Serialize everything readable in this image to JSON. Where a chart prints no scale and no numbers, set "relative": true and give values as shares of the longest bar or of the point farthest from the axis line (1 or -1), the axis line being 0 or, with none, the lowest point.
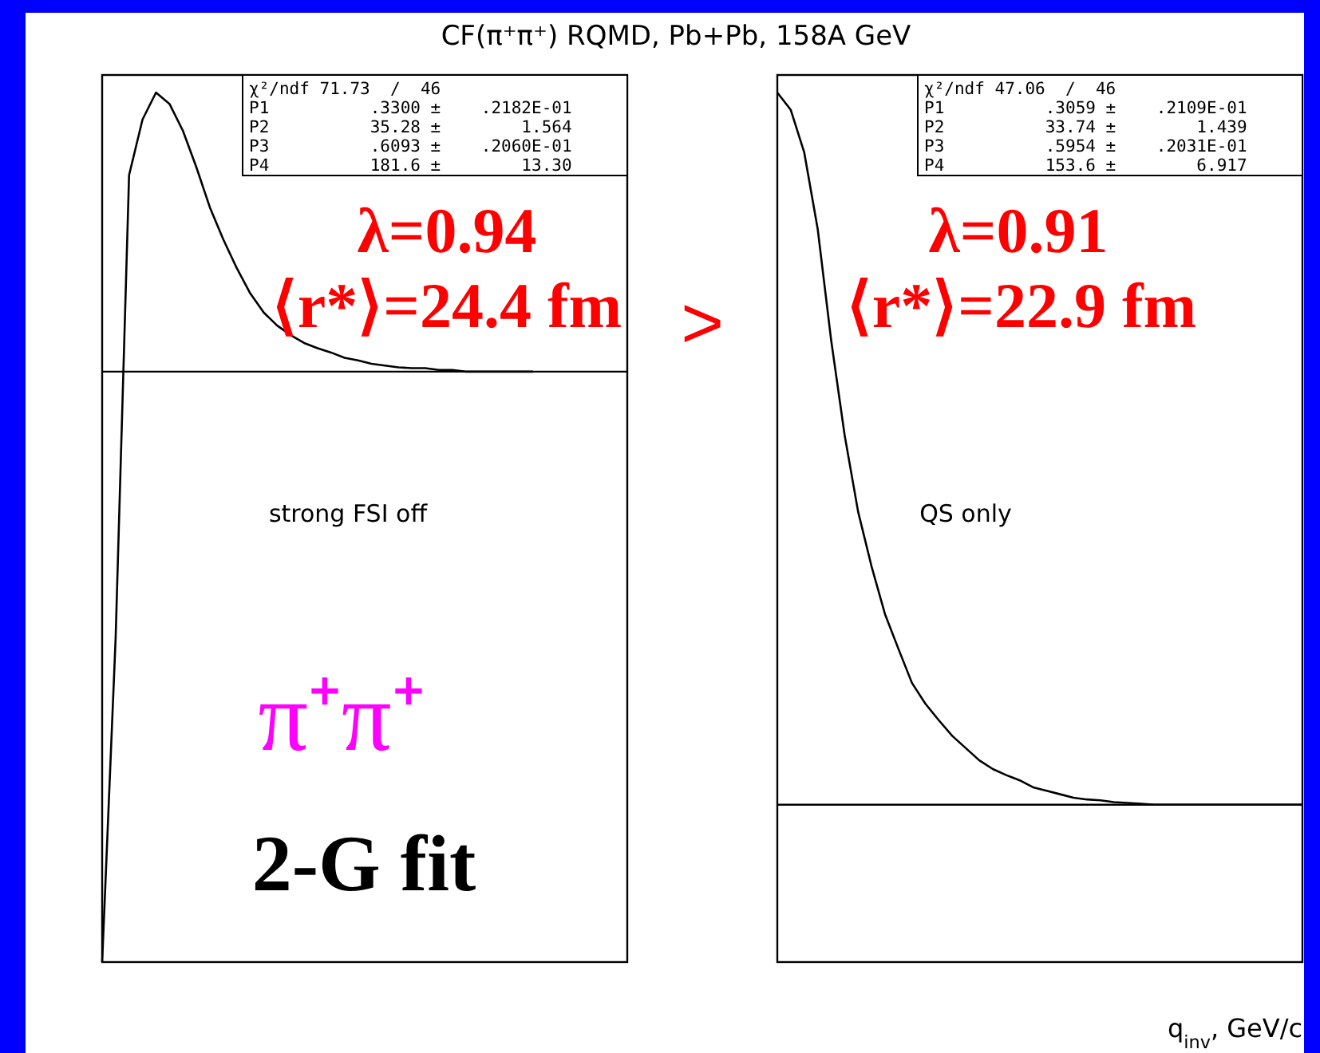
{
  "chart_data": [
    {
      "type": "line",
      "relative": true,
      "title": "CF(π⁺π⁺) RQMD, Pb+Pb, 158A GeV",
      "categories": [
        null,
        null,
        null,
        null,
        null,
        null,
        null,
        null,
        null,
        null,
        null,
        null,
        null,
        null,
        null,
        null,
        null,
        null,
        null,
        null,
        null,
        null,
        null,
        null,
        null,
        null,
        null,
        null,
        null,
        null,
        null,
        null,
        null,
        null,
        null,
        null,
        null,
        null,
        null,
        null
      ],
      "series": [
        {
          "color": "#000000",
          "values": [
            0,
            0.372,
            0.905,
            0.969,
            1,
            0.987,
            0.956,
            0.914,
            0.868,
            0.831,
            0.798,
            0.769,
            0.747,
            0.732,
            0.721,
            0.712,
            0.706,
            0.701,
            0.695,
            0.692,
            0.688,
            0.686,
            0.684,
            0.683,
            0.683,
            0.681,
            0.681,
            0.679,
            0.679,
            0.679,
            0.679,
            0.679,
            0.679,
            null,
            null,
            null,
            null,
            null,
            null,
            null
          ]
        }
      ],
      "ref_lines": [
        {
          "axis": "y",
          "value": 0.679,
          "color": "#000000"
        }
      ],
      "annotations": [
        "χ²/ndf 71.73  /  46",
        "P1          .3300 ±    .2182E-01",
        "P2          35.28 ±        1.564",
        "P3          .6093 ±    .2060E-01",
        "P4          181.6 ±        13.30",
        "λ=0.94",
        "⟨r*⟩=24.4 fm",
        "strong FSI off",
        "π⁺π⁺",
        "2-G fit",
        ">"
      ]
    },
    {
      "type": "line",
      "relative": true,
      "xlabel": "q$_{inv}$, GeV/c",
      "categories": [
        null,
        null,
        null,
        null,
        null,
        null,
        null,
        null,
        null,
        null,
        null,
        null,
        null,
        null,
        null,
        null,
        null,
        null,
        null,
        null,
        null,
        null,
        null,
        null,
        null,
        null,
        null,
        null,
        null,
        null,
        null,
        null,
        null,
        null,
        null,
        null,
        null,
        null,
        null,
        null
      ],
      "series": [
        {
          "color": "#000000",
          "values": [
            1,
            0.98,
            0.931,
            0.843,
            0.715,
            0.606,
            0.518,
            0.455,
            0.4,
            0.36,
            0.321,
            0.297,
            0.278,
            0.26,
            0.246,
            0.232,
            0.222,
            0.215,
            0.209,
            0.201,
            0.197,
            0.193,
            0.189,
            0.187,
            0.186,
            0.184,
            0.183,
            0.182,
            0.181,
            0.181,
            0.181,
            0.181,
            0.181,
            0.181,
            0.181,
            0.181,
            0.181,
            0.181,
            0.181,
            0.181
          ]
        }
      ],
      "ref_lines": [
        {
          "axis": "y",
          "value": 0.181,
          "color": "#000000"
        }
      ],
      "annotations": [
        "χ²/ndf 47.06  /  46",
        "P1          .3059 ±    .2109E-01",
        "P2          33.74 ±        1.439",
        "P3          .5954 ±    .2031E-01",
        "P4          153.6 ±        6.917",
        "λ=0.91",
        "⟨r*⟩=22.9 fm",
        "QS only"
      ]
    }
  ]
}
